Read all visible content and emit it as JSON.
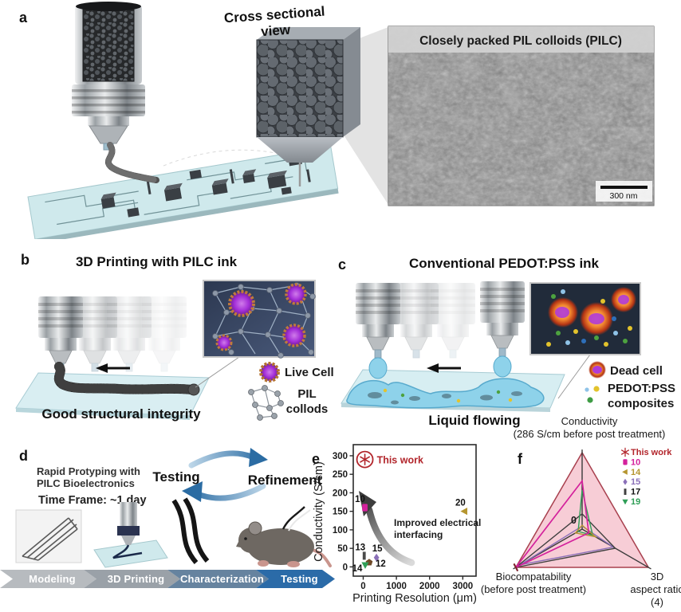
{
  "panels": {
    "a": {
      "label": "a",
      "cross_section_line1": "Cross sectional",
      "cross_section_line2": "view",
      "sem_caption": "Closely packed PIL colloids (PILC)",
      "scale_bar_label": "300 nm"
    },
    "b": {
      "label": "b",
      "title": "3D Printing with PILC ink",
      "bottom_caption": "Good structural integrity",
      "legend": [
        {
          "icon": "live-cell-icon",
          "lines": [
            "Live Cell"
          ]
        },
        {
          "icon": "pil-colloids-icon",
          "lines": [
            "PIL",
            "collods"
          ]
        }
      ]
    },
    "c": {
      "label": "c",
      "title": "Conventional PEDOT:PSS ink",
      "bottom_caption": "Liquid flowing",
      "legend": [
        {
          "icon": "dead-cell-icon",
          "lines": [
            "Dead cell"
          ]
        },
        {
          "icon": "pedot-pss-icon",
          "lines": [
            "PEDOT:PSS",
            "composites"
          ]
        }
      ]
    },
    "d": {
      "label": "d",
      "heading_line1": "Rapid Protyping with",
      "heading_line2": "PILC Bioelectronics",
      "timeframe": "Time Frame: ~1 day",
      "cycle_left": "Testing",
      "cycle_right": "Refinement",
      "workflow": [
        {
          "label": "Modeling",
          "color": "#b7bbbf"
        },
        {
          "label": "3D Printing",
          "color": "#9aa1a8"
        },
        {
          "label": "Characterization",
          "color": "#66839f"
        },
        {
          "label": "Testing",
          "color": "#2b6ba8"
        }
      ]
    },
    "e": {
      "label": "e"
    },
    "f": {
      "label": "f"
    }
  },
  "chart_data": [
    {
      "type": "scatter",
      "title": "",
      "xlabel": "Printing Resolution (μm)",
      "ylabel": "Conductivity (S/cm)",
      "xlim": [
        0,
        3300
      ],
      "ylim": [
        0,
        320
      ],
      "xticks": [
        0,
        1000,
        2000,
        3000
      ],
      "yticks": [
        0,
        50,
        100,
        150,
        200,
        250,
        300
      ],
      "grid": false,
      "annotation": [
        "Improved electrical",
        "interfacing"
      ],
      "points": [
        {
          "label": "This work",
          "x": 50,
          "y": 290,
          "marker": "star",
          "color": "#b2252b",
          "circled": true
        },
        {
          "label": "10",
          "x": 50,
          "y": 160,
          "marker": "square",
          "color": "#d4219c"
        },
        {
          "label": "20",
          "x": 3050,
          "y": 150,
          "marker": "triangle-left",
          "color": "#b5952f"
        },
        {
          "label": "13",
          "x": 30,
          "y": 30,
          "marker": "bar",
          "color": "#4a4a4a"
        },
        {
          "label": "15",
          "x": 400,
          "y": 25,
          "marker": "diamond",
          "color": "#8a6fb8"
        },
        {
          "label": "12",
          "x": 180,
          "y": 12,
          "marker": "pentagon",
          "color": "#6f4a28"
        },
        {
          "label": "14",
          "x": 60,
          "y": 5,
          "marker": "triangle-down",
          "color": "#2f9e57"
        }
      ]
    },
    {
      "type": "radar",
      "center_label": "0",
      "axes": [
        {
          "label_lines": [
            "Conductivity",
            "(286 S/cm before post treatment)"
          ],
          "max_note": "286 S/cm"
        },
        {
          "label_lines": [
            "3D",
            "aspect ratio",
            "(4)"
          ],
          "max_note": "4"
        },
        {
          "label_lines": [
            "Biocompatability",
            "(before post treatment)"
          ],
          "max_note": "full"
        }
      ],
      "series": [
        {
          "name": "This work",
          "marker": "star",
          "color": "#b2252b",
          "fill": "#f7cdd6",
          "values": [
            1.0,
            1.0,
            1.0
          ]
        },
        {
          "name": "15",
          "marker": "diamond",
          "color": "#8a6fb8",
          "values": [
            0.04,
            0.47,
            0.93
          ]
        },
        {
          "name": "17",
          "marker": "bar",
          "color": "#3f3f3f",
          "values": [
            0.2,
            0.5,
            1.0
          ]
        },
        {
          "name": "19",
          "marker": "triangle-down",
          "color": "#2f9e57",
          "values": [
            0.51,
            0.16,
            0.06
          ]
        },
        {
          "name": "14",
          "marker": "triangle-left",
          "color": "#b5952f",
          "values": [
            0.05,
            0.2,
            0.1
          ]
        },
        {
          "name": "10",
          "marker": "square",
          "color": "#d4219c",
          "values": [
            0.63,
            0.1,
            1.0
          ]
        }
      ],
      "legend_order": [
        "This work",
        "10",
        "14",
        "15",
        "17",
        "19"
      ]
    }
  ]
}
